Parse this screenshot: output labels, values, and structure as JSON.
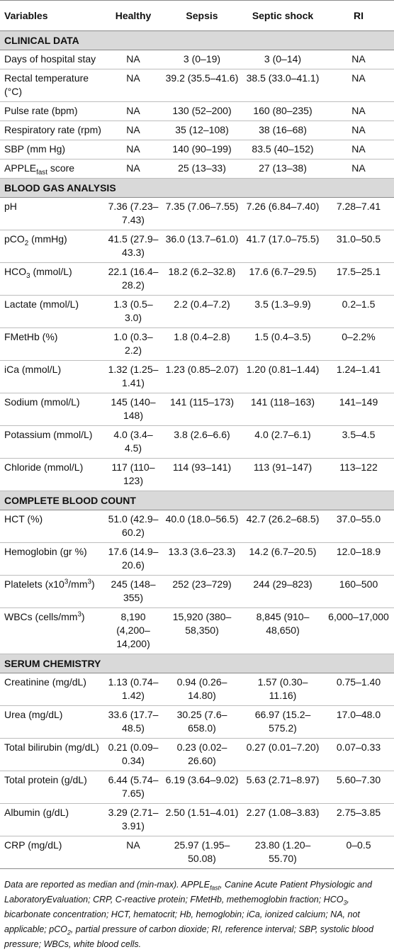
{
  "header": {
    "variables": "Variables",
    "healthy": "Healthy",
    "sepsis": "Sepsis",
    "septic_shock": "Septic shock",
    "ri": "RI"
  },
  "clinical": {
    "title": "CLINICAL DATA",
    "r1": {
      "label": "Days of hospital stay",
      "healthy": "NA",
      "sepsis": "3 (0–19)",
      "shock": "3 (0–14)",
      "ri": "NA"
    },
    "r2": {
      "label": "Rectal temperature (°C)",
      "healthy": "NA",
      "sepsis": "39.2 (35.5–41.6)",
      "shock": "38.5 (33.0–41.1)",
      "ri": "NA"
    },
    "r3": {
      "label": "Pulse rate (bpm)",
      "healthy": "NA",
      "sepsis": "130 (52–200)",
      "shock": "160 (80–235)",
      "ri": "NA"
    },
    "r4": {
      "label": "Respiratory rate (rpm)",
      "healthy": "NA",
      "sepsis": "35 (12–108)",
      "shock": "38 (16–68)",
      "ri": "NA"
    },
    "r5": {
      "label": "SBP (mm Hg)",
      "healthy": "NA",
      "sepsis": "140 (90–199)",
      "shock": "83.5 (40–152)",
      "ri": "NA"
    },
    "r6": {
      "label_pre": "APPLE",
      "label_sub": "fast",
      "label_post": " score",
      "healthy": "NA",
      "sepsis": "25 (13–33)",
      "shock": "27 (13–38)",
      "ri": "NA"
    }
  },
  "blood_gas": {
    "title": "BLOOD GAS ANALYSIS",
    "r1": {
      "label": "pH",
      "healthy": "7.36 (7.23–7.43)",
      "sepsis": "7.35 (7.06–7.55)",
      "shock": "7.26 (6.84–7.40)",
      "ri": "7.28–7.41"
    },
    "r2": {
      "label_pre": "pCO",
      "label_sub": "2",
      "label_post": " (mmHg)",
      "healthy": "41.5 (27.9–43.3)",
      "sepsis": "36.0 (13.7–61.0)",
      "shock": "41.7 (17.0–75.5)",
      "ri": "31.0–50.5"
    },
    "r3": {
      "label_pre": "HCO",
      "label_sub": "3",
      "label_post": " (mmol/L)",
      "healthy": "22.1 (16.4–28.2)",
      "sepsis": "18.2 (6.2–32.8)",
      "shock": "17.6 (6.7–29.5)",
      "ri": "17.5–25.1"
    },
    "r4": {
      "label": "Lactate (mmol/L)",
      "healthy": "1.3 (0.5–3.0)",
      "sepsis": "2.2 (0.4–7.2)",
      "shock": "3.5 (1.3–9.9)",
      "ri": "0.2–1.5"
    },
    "r5": {
      "label": "FMetHb (%)",
      "healthy": "1.0 (0.3–2.2)",
      "sepsis": "1.8 (0.4–2.8)",
      "shock": "1.5 (0.4–3.5)",
      "ri": "0–2.2%"
    },
    "r6": {
      "label": "iCa (mmol/L)",
      "healthy": "1.32 (1.25–1.41)",
      "sepsis": "1.23 (0.85–2.07)",
      "shock": "1.20 (0.81–1.44)",
      "ri": "1.24–1.41"
    },
    "r7": {
      "label": "Sodium (mmol/L)",
      "healthy": "145 (140–148)",
      "sepsis": "141 (115–173)",
      "shock": "141 (118–163)",
      "ri": "141–149"
    },
    "r8": {
      "label": "Potassium (mmol/L)",
      "healthy": "4.0 (3.4–4.5)",
      "sepsis": "3.8 (2.6–6.6)",
      "shock": "4.0 (2.7–6.1)",
      "ri": "3.5–4.5"
    },
    "r9": {
      "label": "Chloride (mmol/L)",
      "healthy": "117 (110–123)",
      "sepsis": "114 (93–141)",
      "shock": "113 (91–147)",
      "ri": "113–122"
    }
  },
  "cbc": {
    "title": "COMPLETE BLOOD COUNT",
    "r1": {
      "label": "HCT (%)",
      "healthy": "51.0 (42.9–60.2)",
      "sepsis": "40.0 (18.0–56.5)",
      "shock": "42.7 (26.2–68.5)",
      "ri": "37.0–55.0"
    },
    "r2": {
      "label": "Hemoglobin (gr %)",
      "healthy": "17.6 (14.9–20.6)",
      "sepsis": "13.3 (3.6–23.3)",
      "shock": "14.2 (6.7–20.5)",
      "ri": "12.0–18.9"
    },
    "r3": {
      "label_pre": "Platelets (x10",
      "label_sup": "3",
      "label_mid": "/mm",
      "label_sup2": "3",
      "label_post": ")",
      "healthy": "245 (148–355)",
      "sepsis": "252 (23–729)",
      "shock": "244 (29–823)",
      "ri": "160–500"
    },
    "r4": {
      "label_pre": "WBCs (cells/mm",
      "label_sup": "3",
      "label_post": ")",
      "healthy": "8,190 (4,200–14,200)",
      "sepsis": "15,920 (380–58,350)",
      "shock": "8,845 (910–48,650)",
      "ri": "6,000–17,000"
    }
  },
  "serum": {
    "title": "SERUM CHEMISTRY",
    "r1": {
      "label": "Creatinine (mg/dL)",
      "healthy": "1.13 (0.74–1.42)",
      "sepsis": "0.94 (0.26–14.80)",
      "shock": "1.57 (0.30–11.16)",
      "ri": "0.75–1.40"
    },
    "r2": {
      "label": "Urea (mg/dL)",
      "healthy": "33.6 (17.7–48.5)",
      "sepsis": "30.25 (7.6–658.0)",
      "shock": "66.97 (15.2–575.2)",
      "ri": "17.0–48.0"
    },
    "r3": {
      "label": "Total bilirubin (mg/dL)",
      "healthy": "0.21 (0.09–0.34)",
      "sepsis": "0.23 (0.02–26.60)",
      "shock": "0.27 (0.01–7.20)",
      "ri": "0.07–0.33"
    },
    "r4": {
      "label": "Total protein (g/dL)",
      "healthy": "6.44 (5.74–7.65)",
      "sepsis": "6.19 (3.64–9.02)",
      "shock": "5.63 (2.71–8.97)",
      "ri": "5.60–7.30"
    },
    "r5": {
      "label": "Albumin (g/dL)",
      "healthy": "3.29 (2.71–3.91)",
      "sepsis": "2.50 (1.51–4.01)",
      "shock": "2.27 (1.08–3.83)",
      "ri": "2.75–3.85"
    },
    "r6": {
      "label": "CRP (mg/dL)",
      "healthy": "NA",
      "sepsis": "25.97 (1.95–50.08)",
      "shock": "23.80 (1.20–55.70)",
      "ri": "0–0.5"
    }
  },
  "footnote": {
    "p1": "Data are reported as median and (min-max). APPLE",
    "p1_sub": "fast",
    "p2": ", Canine Acute Patient Physiologic and LaboratoryEvaluation; CRP, C-reactive protein; FMetHb, methemoglobin fraction; HCO",
    "p2_sub": "3",
    "p3": ", bicarbonate concentration; HCT, hematocrit; Hb, hemoglobin; iCa, ionized calcium; NA, not applicable; pCO",
    "p3_sub": "2",
    "p4": ", partial pressure of carbon dioxide; RI, reference interval; SBP, systolic blood pressure; WBCs, white blood cells."
  }
}
